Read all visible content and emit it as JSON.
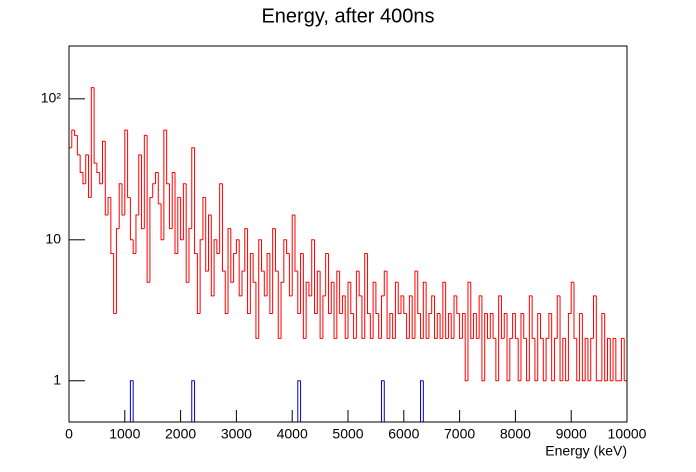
{
  "chart_data": {
    "type": "histogram",
    "title": "Energy, after 400ns",
    "x_label": "Energy (keV)",
    "log_y": true,
    "bins": [
      0,
      50,
      100,
      150,
      200,
      250,
      300,
      350,
      400,
      450,
      500,
      550,
      600,
      650,
      700,
      750,
      800,
      850,
      900,
      950,
      1000,
      1050,
      1100,
      1150,
      1200,
      1250,
      1300,
      1350,
      1400,
      1450,
      1500,
      1550,
      1600,
      1650,
      1700,
      1750,
      1800,
      1850,
      1900,
      1950,
      2000,
      2050,
      2100,
      2150,
      2200,
      2250,
      2300,
      2350,
      2400,
      2450,
      2500,
      2550,
      2600,
      2650,
      2700,
      2750,
      2800,
      2850,
      2900,
      2950,
      3000,
      3050,
      3100,
      3150,
      3200,
      3250,
      3300,
      3350,
      3400,
      3450,
      3500,
      3550,
      3600,
      3650,
      3700,
      3750,
      3800,
      3850,
      3900,
      3950,
      4000,
      4050,
      4100,
      4150,
      4200,
      4250,
      4300,
      4350,
      4400,
      4450,
      4500,
      4550,
      4600,
      4650,
      4700,
      4750,
      4800,
      4850,
      4900,
      4950,
      5000,
      5050,
      5100,
      5150,
      5200,
      5250,
      5300,
      5350,
      5400,
      5450,
      5500,
      5550,
      5600,
      5650,
      5700,
      5750,
      5800,
      5850,
      5900,
      5950,
      6000,
      6050,
      6100,
      6150,
      6200,
      6250,
      6300,
      6350,
      6400,
      6450,
      6500,
      6550,
      6600,
      6650,
      6700,
      6750,
      6800,
      6850,
      6900,
      6950,
      7000,
      7050,
      7100,
      7150,
      7200,
      7250,
      7300,
      7350,
      7400,
      7450,
      7500,
      7550,
      7600,
      7650,
      7700,
      7750,
      7800,
      7850,
      7900,
      7950,
      8000,
      8050,
      8100,
      8150,
      8200,
      8250,
      8300,
      8350,
      8400,
      8450,
      8500,
      8550,
      8600,
      8650,
      8700,
      8750,
      8800,
      8850,
      8900,
      8950,
      9000,
      9050,
      9100,
      9150,
      9200,
      9250,
      9300,
      9350,
      9400,
      9450,
      9500,
      9550,
      9600,
      9650,
      9700,
      9750,
      9800,
      9850,
      9900,
      9950,
      10000
    ],
    "series": [
      {
        "color": "#0000cc",
        "values": [
          0,
          0,
          0,
          0,
          0,
          0,
          0,
          0,
          0,
          0,
          0,
          0,
          0,
          0,
          0,
          0,
          0,
          0,
          0,
          0,
          0,
          0,
          1,
          0,
          0,
          0,
          0,
          0,
          0,
          0,
          0,
          0,
          0,
          0,
          0,
          0,
          0,
          0,
          0,
          0,
          0,
          0,
          0,
          0,
          1,
          0,
          0,
          0,
          0,
          0,
          0,
          0,
          0,
          0,
          0,
          0,
          0,
          0,
          0,
          0,
          0,
          0,
          0,
          0,
          0,
          0,
          0,
          0,
          0,
          0,
          0,
          0,
          0,
          0,
          0,
          0,
          0,
          0,
          0,
          0,
          0,
          0,
          1,
          0,
          0,
          0,
          0,
          0,
          0,
          0,
          0,
          0,
          0,
          0,
          0,
          0,
          0,
          0,
          0,
          0,
          0,
          0,
          0,
          0,
          0,
          0,
          0,
          0,
          0,
          0,
          0,
          0,
          1,
          0,
          0,
          0,
          0,
          0,
          0,
          0,
          0,
          0,
          0,
          0,
          0,
          0,
          1,
          0,
          0,
          0,
          0,
          0,
          0,
          0,
          0,
          0,
          0,
          0,
          0,
          0,
          0,
          0,
          0,
          0,
          0,
          0,
          0,
          0,
          0,
          0,
          0,
          0,
          0,
          0,
          0,
          0,
          0,
          0,
          0,
          0,
          0,
          0,
          0,
          0,
          0,
          0,
          0,
          0,
          0,
          0,
          0,
          0,
          0,
          0,
          0,
          0,
          0,
          0,
          0,
          0,
          0,
          0,
          0,
          0,
          0,
          0,
          0,
          0,
          0,
          0,
          0,
          0,
          0,
          0,
          0,
          0,
          0,
          0,
          0,
          0
        ]
      },
      {
        "color": "#ff0000",
        "values": [
          45,
          60,
          55,
          40,
          30,
          25,
          40,
          20,
          120,
          35,
          30,
          25,
          50,
          15,
          20,
          8,
          3,
          12,
          25,
          15,
          60,
          20,
          10,
          8,
          15,
          40,
          12,
          55,
          5,
          20,
          25,
          30,
          18,
          10,
          60,
          25,
          12,
          30,
          8,
          20,
          10,
          25,
          5,
          12,
          45,
          8,
          3,
          10,
          20,
          6,
          15,
          4,
          10,
          8,
          25,
          6,
          3,
          12,
          5,
          8,
          10,
          4,
          6,
          12,
          3,
          8,
          5,
          2,
          10,
          6,
          4,
          8,
          3,
          12,
          6,
          2,
          5,
          10,
          8,
          4,
          15,
          6,
          3,
          8,
          2,
          5,
          4,
          10,
          3,
          6,
          2,
          4,
          8,
          3,
          5,
          2,
          6,
          3,
          4,
          2,
          5,
          3,
          2,
          6,
          4,
          2,
          8,
          3,
          2,
          5,
          3,
          2,
          4,
          6,
          2,
          3,
          2,
          5,
          3,
          4,
          3,
          2,
          4,
          2,
          6,
          3,
          2,
          5,
          2,
          3,
          4,
          2,
          3,
          2,
          5,
          2,
          3,
          2,
          4,
          3,
          2,
          3,
          1,
          5,
          2,
          3,
          2,
          4,
          1,
          3,
          2,
          3,
          2,
          1,
          4,
          2,
          3,
          1,
          2,
          3,
          2,
          1,
          3,
          2,
          1,
          4,
          2,
          1,
          3,
          2,
          1,
          2,
          3,
          1,
          2,
          4,
          1,
          2,
          1,
          3,
          5,
          2,
          1,
          3,
          1,
          2,
          1,
          2,
          4,
          1,
          1,
          3,
          1,
          2,
          1,
          2,
          1,
          1,
          2,
          1
        ]
      }
    ],
    "xlim": [
      0,
      10000
    ],
    "xticks": [
      0,
      1000,
      2000,
      3000,
      4000,
      5000,
      6000,
      7000,
      8000,
      9000,
      10000
    ],
    "ylim": [
      0.51,
      237
    ],
    "yticks": [
      1,
      10,
      {
        "value": 100,
        "label": "10²"
      }
    ]
  }
}
